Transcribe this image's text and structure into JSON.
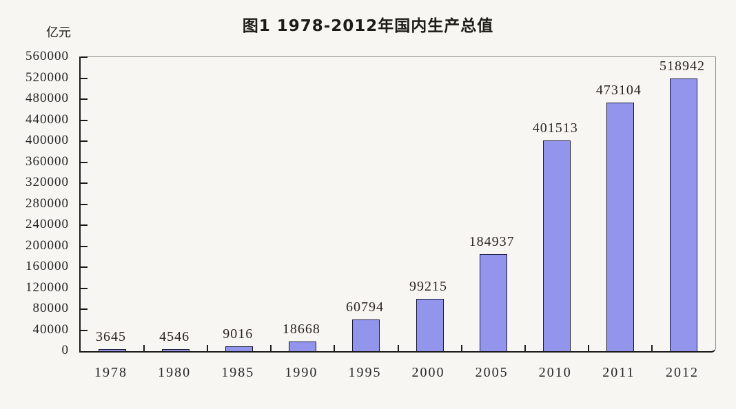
{
  "title": "图1 1978-2012年国内生产总值",
  "y_unit": "亿元",
  "colors": {
    "background": "#f7f6f3",
    "bar_fill": "#9394ec",
    "bar_border": "#17173a",
    "axis": "#1b1b1b",
    "box_border": "#8a8a86",
    "text": "#26231f"
  },
  "chart_data": {
    "type": "bar",
    "title": "图1 1978-2012年国内生产总值",
    "xlabel": "",
    "ylabel": "亿元",
    "categories": [
      "1978",
      "1980",
      "1985",
      "1990",
      "1995",
      "2000",
      "2005",
      "2010",
      "2011",
      "2012"
    ],
    "values": [
      3645,
      4546,
      9016,
      18668,
      60794,
      99215,
      184937,
      401513,
      473104,
      518942
    ],
    "ylim": [
      0,
      560000
    ],
    "ytick_step": 40000,
    "ytick_labels": [
      "0",
      "40000",
      "80000",
      "120000",
      "160000",
      "200000",
      "240000",
      "280000",
      "320000",
      "360000",
      "400000",
      "440000",
      "480000",
      "520000",
      "560000"
    ],
    "grid": false,
    "legend_position": "none",
    "data_labels": true
  }
}
